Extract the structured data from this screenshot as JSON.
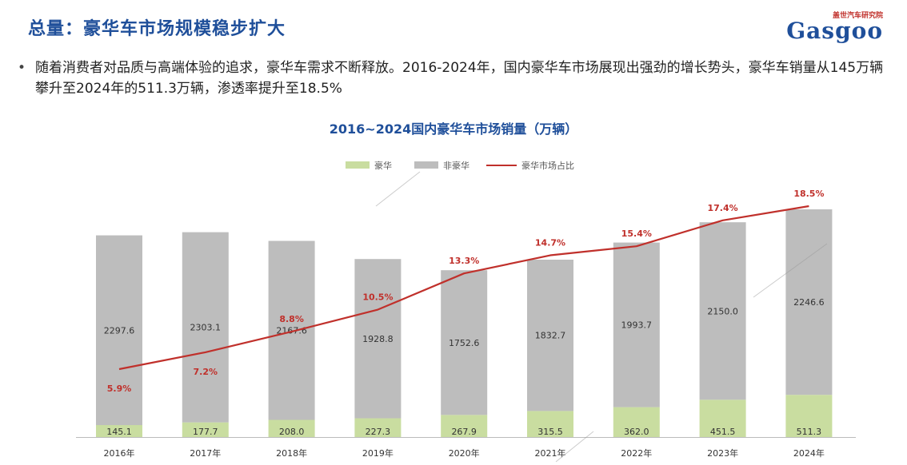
{
  "header": {
    "title": "总量：豪华车市场规模稳步扩大"
  },
  "logo": {
    "top_text": "盖世汽车研究院",
    "main_text": "Gasgoo"
  },
  "intro": {
    "bullet": "•",
    "text": "随着消费者对品质与高端体验的追求，豪华车需求不断释放。2016-2024年，国内豪华车市场展现出强劲的增长势头，豪华车销量从145万辆攀升至2024年的511.3万辆，渗透率提升至18.5%"
  },
  "chart_data": {
    "type": "bar",
    "stacked": true,
    "title": "2016~2024国内豪华车市场销量（万辆）",
    "categories": [
      "2016年",
      "2017年",
      "2018年",
      "2019年",
      "2020年",
      "2021年",
      "2022年",
      "2023年",
      "2024年"
    ],
    "series": [
      {
        "name": "豪华",
        "type": "bar",
        "color": "#c9dda0",
        "values": [
          145.1,
          177.7,
          208.0,
          227.3,
          267.9,
          315.5,
          362.0,
          451.5,
          511.3
        ],
        "labels": [
          "145.1",
          "177.7",
          "208.0",
          "227.3",
          "267.9",
          "315.5",
          "362.0",
          "451.5",
          "511.3"
        ]
      },
      {
        "name": "非豪华",
        "type": "bar",
        "color": "#bdbdbd",
        "values": [
          2297.6,
          2303.1,
          2167.6,
          1928.8,
          1752.6,
          1832.7,
          1993.7,
          2150.0,
          2246.6
        ],
        "labels": [
          "2297.6",
          "2303.1",
          "2167.6",
          "1928.8",
          "1752.6",
          "1832.7",
          "1993.7",
          "2150.0",
          "2246.6"
        ]
      },
      {
        "name": "豪华市场占比",
        "type": "line",
        "color": "#c0302b",
        "values": [
          5.9,
          7.2,
          8.8,
          10.5,
          13.3,
          14.7,
          15.4,
          17.4,
          18.5
        ],
        "labels": [
          "5.9%",
          "7.2%",
          "8.8%",
          "10.5%",
          "13.3%",
          "14.7%",
          "15.4%",
          "17.4%",
          "18.5%"
        ]
      }
    ],
    "legend_position": "top-center",
    "grid": false
  }
}
